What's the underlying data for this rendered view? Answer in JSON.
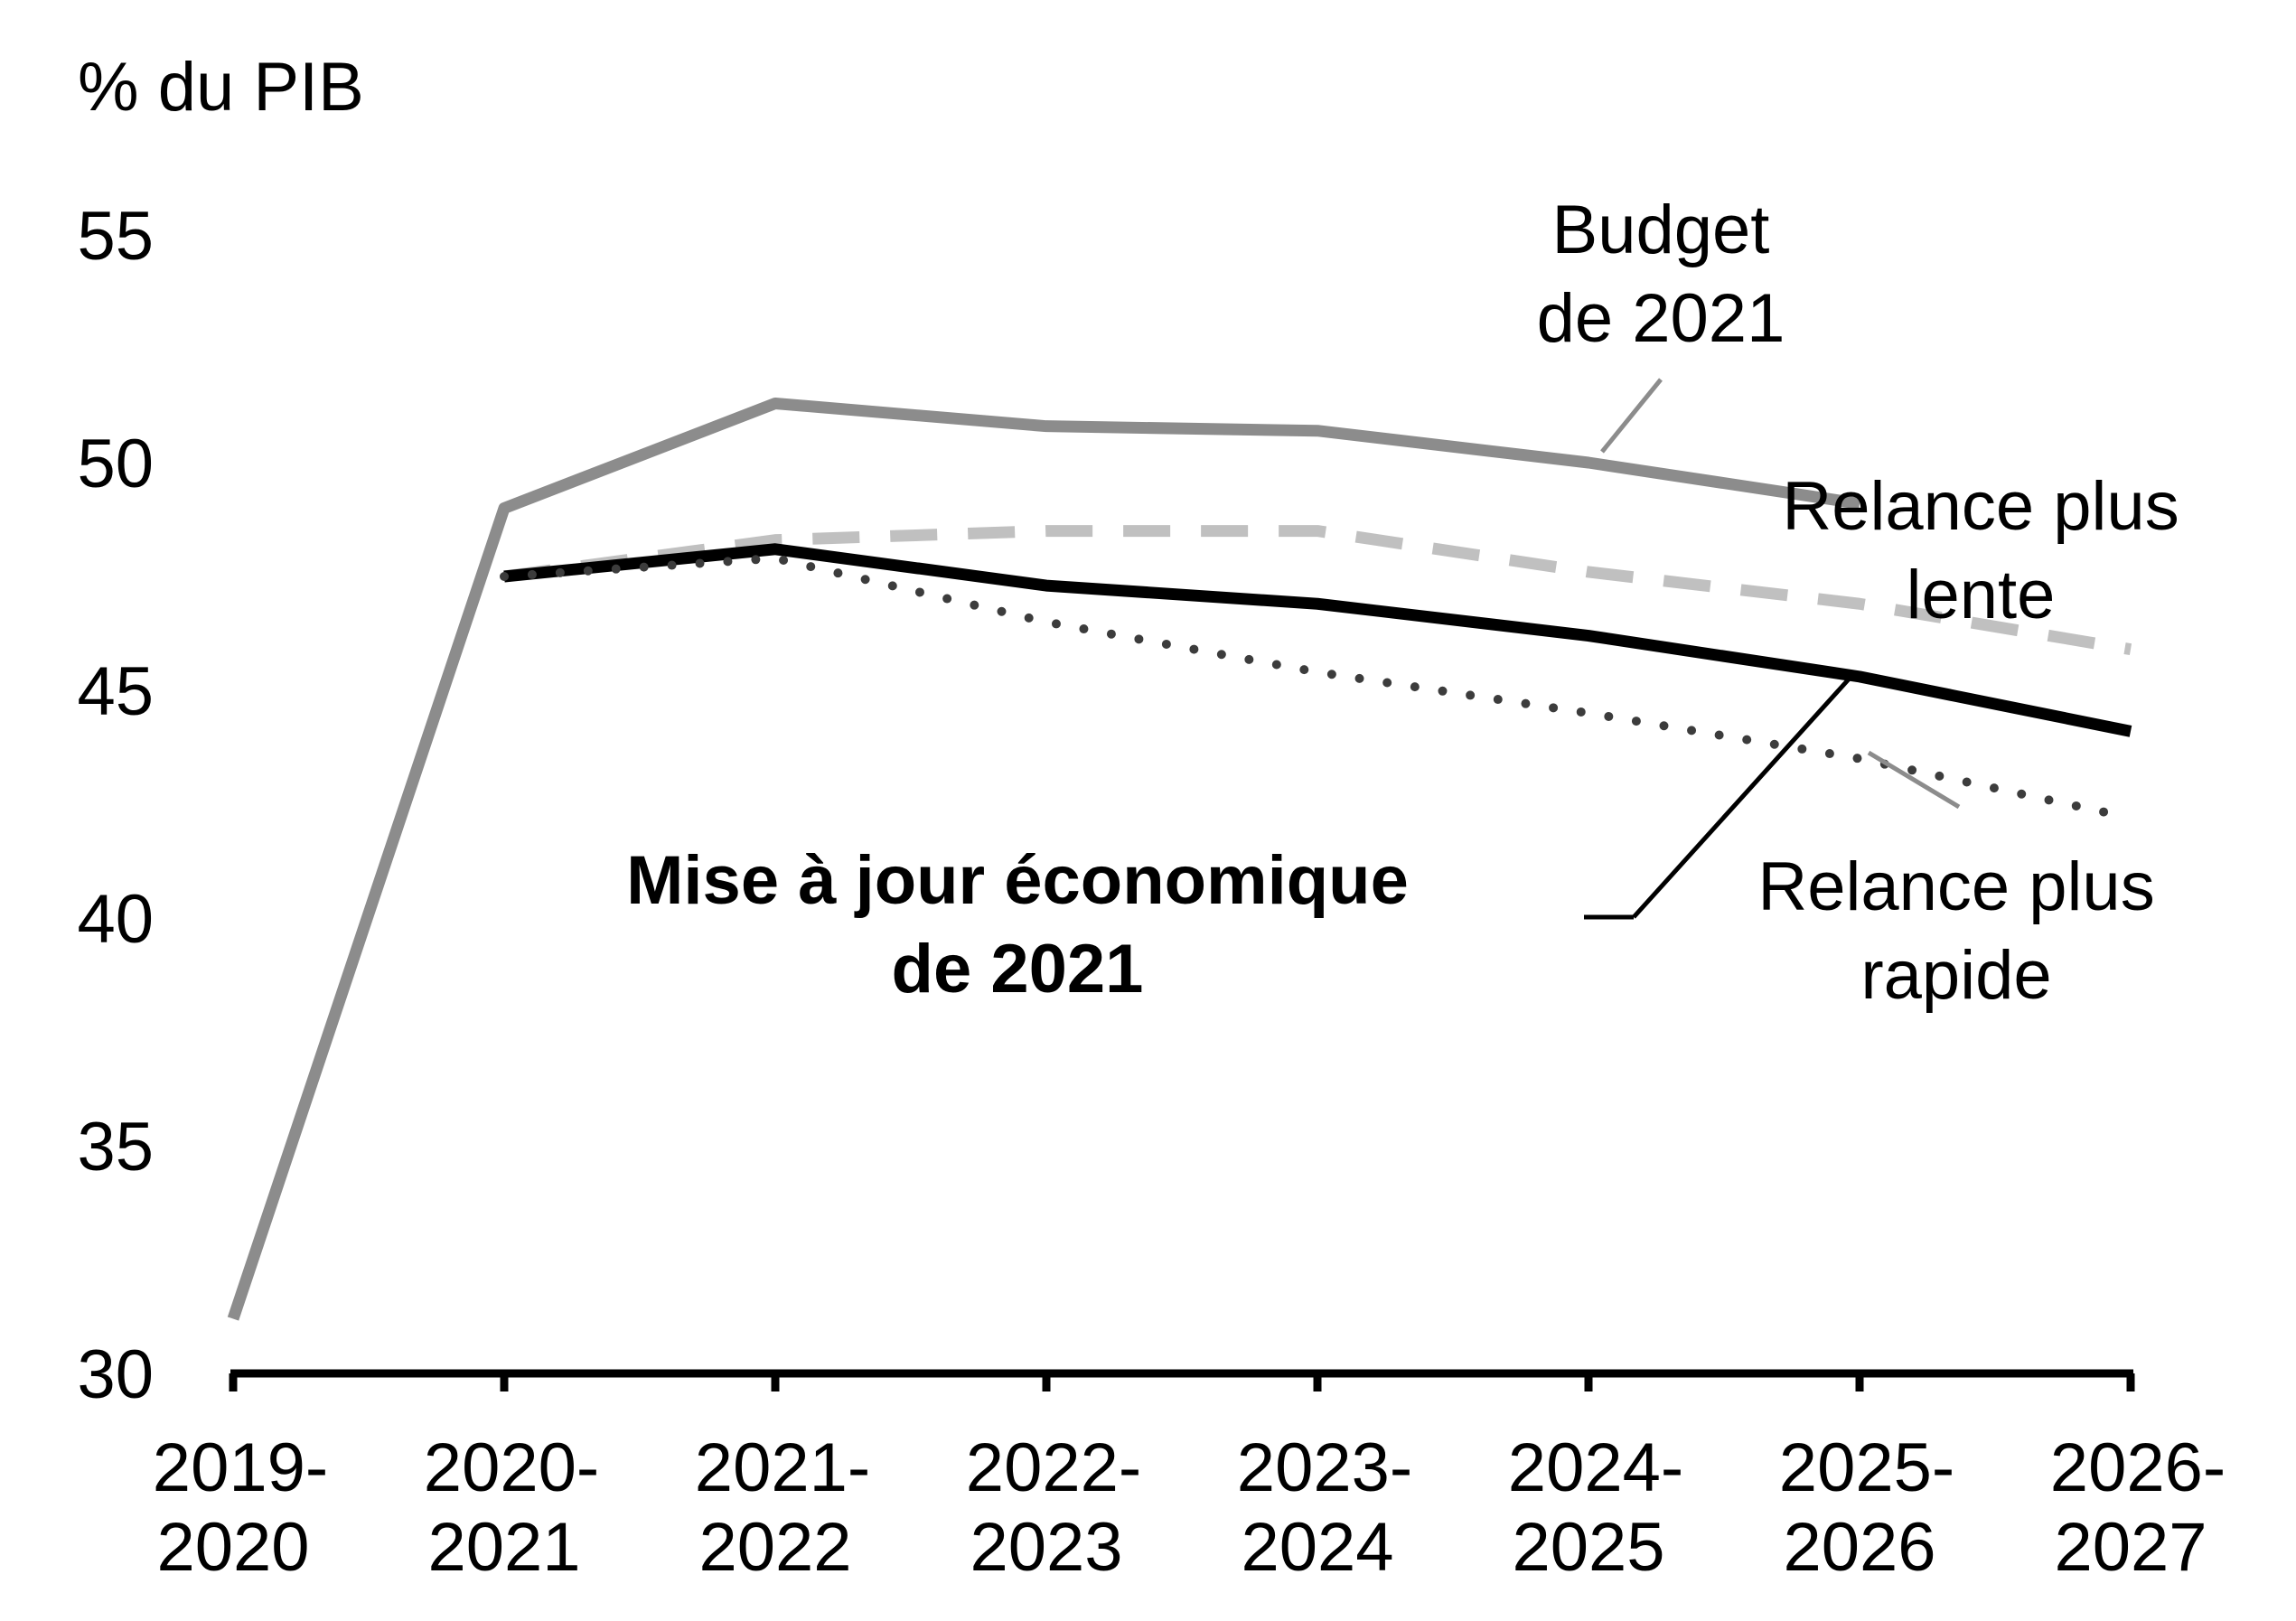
{
  "chart_data": {
    "type": "line",
    "title": "",
    "ylabel": "% du PIB",
    "xlabel": "",
    "ylim": [
      30,
      55
    ],
    "yticks": [
      30,
      35,
      40,
      45,
      50,
      55
    ],
    "grid": false,
    "categories": [
      [
        "2019-",
        "2020"
      ],
      [
        "2020-",
        "2021"
      ],
      [
        "2021-",
        "2022"
      ],
      [
        "2022-",
        "2023"
      ],
      [
        "2023-",
        "2024"
      ],
      [
        "2024-",
        "2025"
      ],
      [
        "2025-",
        "2026"
      ],
      [
        "2026-",
        "2027"
      ]
    ],
    "series": [
      {
        "name": "Budget de 2021",
        "label_lines": [
          "Budget",
          "de 2021"
        ],
        "color": "#8c8c8c",
        "style": "solid",
        "values": [
          31.2,
          49.0,
          51.3,
          50.8,
          50.7,
          50.0,
          49.1,
          null
        ]
      },
      {
        "name": "Relance plus lente",
        "label_lines": [
          "Relance plus",
          "lente"
        ],
        "color": "#c0c0c0",
        "style": "dashed",
        "values": [
          null,
          47.5,
          48.3,
          48.5,
          48.5,
          47.6,
          46.9,
          45.9
        ]
      },
      {
        "name": "Mise à jour économique de 2021",
        "label_lines": [
          "Mise à jour économique",
          "de 2021"
        ],
        "color": "#000000",
        "style": "solid",
        "values": [
          null,
          47.5,
          48.1,
          47.3,
          46.9,
          46.2,
          45.3,
          44.1
        ]
      },
      {
        "name": "Relance plus rapide",
        "label_lines": [
          "Relance plus",
          "rapide"
        ],
        "color": "#3c3c3c",
        "style": "dotted",
        "values": [
          null,
          47.5,
          47.9,
          46.5,
          45.4,
          44.5,
          43.5,
          42.2
        ]
      }
    ]
  }
}
